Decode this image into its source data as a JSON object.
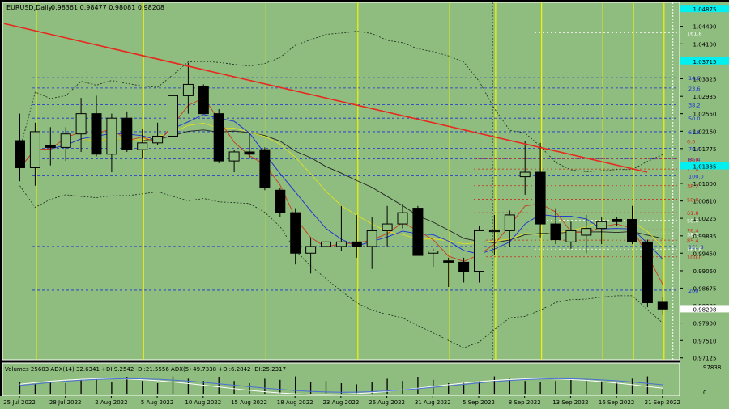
{
  "header": {
    "symbol_text": "EURUSD,Daily",
    "ohlc_text": "0.98361 0.98477 0.98081 0.98208"
  },
  "colors": {
    "background": "#8fbc7f",
    "frame": "#000000",
    "bull_candle": "#8fbc7f",
    "bear_candle": "#000000",
    "trendline": "#e8281e",
    "fib_blue": "#1a2fd6",
    "fib_red": "#cc2a1a",
    "vline_yellow": "#f4f400",
    "price_badge": "#00f0f0",
    "current_price_badge": "#ffffff"
  },
  "chart_data": {
    "type": "candlestick",
    "symbol": "EURUSD",
    "timeframe": "Daily",
    "ylim": [
      0.9712,
      1.0495
    ],
    "y_ticks": [
      "1.04875",
      "1.04490",
      "1.04100",
      "1.03715",
      "1.03325",
      "1.02935",
      "1.02550",
      "1.02160",
      "1.01775",
      "1.01385",
      "1.01000",
      "1.00610",
      "1.00225",
      "0.99835",
      "0.99450",
      "0.99060",
      "0.98675",
      "0.98285",
      "0.97900",
      "0.97510",
      "0.97125"
    ],
    "x_labels": [
      "25 Jul 2022",
      "28 Jul 2022",
      "2 Aug 2022",
      "5 Aug 2022",
      "10 Aug 2022",
      "15 Aug 2022",
      "18 Aug 2022",
      "23 Aug 2022",
      "26 Aug 2022",
      "31 Aug 2022",
      "5 Sep 2022",
      "8 Sep 2022",
      "13 Sep 2022",
      "16 Sep 2022",
      "21 Sep 2022"
    ],
    "candles": [
      {
        "o": 1.0195,
        "h": 1.0255,
        "l": 1.0105,
        "c": 1.0135
      },
      {
        "o": 1.0135,
        "h": 1.0235,
        "l": 1.0095,
        "c": 1.0215
      },
      {
        "o": 1.0185,
        "h": 1.0225,
        "l": 1.014,
        "c": 1.018
      },
      {
        "o": 1.018,
        "h": 1.0225,
        "l": 1.015,
        "c": 1.021
      },
      {
        "o": 1.021,
        "h": 1.029,
        "l": 1.017,
        "c": 1.0255
      },
      {
        "o": 1.0255,
        "h": 1.0295,
        "l": 1.016,
        "c": 1.0165
      },
      {
        "o": 1.0165,
        "h": 1.0255,
        "l": 1.0125,
        "c": 1.0245
      },
      {
        "o": 1.0245,
        "h": 1.026,
        "l": 1.017,
        "c": 1.0175
      },
      {
        "o": 1.0175,
        "h": 1.022,
        "l": 1.0155,
        "c": 1.019
      },
      {
        "o": 1.019,
        "h": 1.0235,
        "l": 1.0185,
        "c": 1.0205
      },
      {
        "o": 1.0205,
        "h": 1.0365,
        "l": 1.0205,
        "c": 1.0295
      },
      {
        "o": 1.0295,
        "h": 1.0368,
        "l": 1.0255,
        "c": 1.032
      },
      {
        "o": 1.0315,
        "h": 1.032,
        "l": 1.0255,
        "c": 1.0255
      },
      {
        "o": 1.0255,
        "h": 1.0265,
        "l": 1.0145,
        "c": 1.015
      },
      {
        "o": 1.015,
        "h": 1.0175,
        "l": 1.0125,
        "c": 1.017
      },
      {
        "o": 1.017,
        "h": 1.021,
        "l": 1.0155,
        "c": 1.0165
      },
      {
        "o": 1.0175,
        "h": 1.018,
        "l": 1.0085,
        "c": 1.009
      },
      {
        "o": 1.0085,
        "h": 1.009,
        "l": 1.0025,
        "c": 1.0035
      },
      {
        "o": 1.0035,
        "h": 1.0045,
        "l": 0.992,
        "c": 0.9945
      },
      {
        "o": 0.9945,
        "h": 0.998,
        "l": 0.99,
        "c": 0.996
      },
      {
        "o": 0.996,
        "h": 1.001,
        "l": 0.9945,
        "c": 0.997
      },
      {
        "o": 0.996,
        "h": 1.005,
        "l": 0.995,
        "c": 0.997
      },
      {
        "o": 0.997,
        "h": 1.003,
        "l": 0.9935,
        "c": 0.996
      },
      {
        "o": 0.996,
        "h": 1.0025,
        "l": 0.991,
        "c": 0.9995
      },
      {
        "o": 0.9995,
        "h": 1.005,
        "l": 0.996,
        "c": 1.001
      },
      {
        "o": 1.001,
        "h": 1.0055,
        "l": 1.0,
        "c": 1.0035
      },
      {
        "o": 1.0045,
        "h": 1.005,
        "l": 0.994,
        "c": 0.994
      },
      {
        "o": 0.9945,
        "h": 0.9955,
        "l": 0.9915,
        "c": 0.995
      },
      {
        "o": 0.9928,
        "h": 0.9935,
        "l": 0.987,
        "c": 0.9925
      },
      {
        "o": 0.9925,
        "h": 0.9935,
        "l": 0.988,
        "c": 0.9905
      },
      {
        "o": 0.9905,
        "h": 1.0005,
        "l": 0.988,
        "c": 0.9995
      },
      {
        "o": 0.9995,
        "h": 1.003,
        "l": 0.994,
        "c": 0.9995
      },
      {
        "o": 0.9995,
        "h": 1.004,
        "l": 0.996,
        "c": 1.003
      },
      {
        "o": 1.0115,
        "h": 1.0195,
        "l": 1.0075,
        "c": 1.0125
      },
      {
        "o": 1.0125,
        "h": 1.019,
        "l": 0.998,
        "c": 1.001
      },
      {
        "o": 1.001,
        "h": 1.0045,
        "l": 0.9965,
        "c": 0.9975
      },
      {
        "o": 0.997,
        "h": 1.0015,
        "l": 0.9955,
        "c": 0.9995
      },
      {
        "o": 0.9985,
        "h": 1.003,
        "l": 0.9945,
        "c": 1.0
      },
      {
        "o": 1.0,
        "h": 1.0025,
        "l": 0.9965,
        "c": 1.0015
      },
      {
        "o": 1.002,
        "h": 1.0025,
        "l": 1.0005,
        "c": 1.0015
      },
      {
        "o": 1.002,
        "h": 1.005,
        "l": 0.9965,
        "c": 0.997
      },
      {
        "o": 0.997,
        "h": 0.9975,
        "l": 0.9825,
        "c": 0.9835
      },
      {
        "o": 0.9836,
        "h": 0.9848,
        "l": 0.9808,
        "c": 0.9821
      }
    ],
    "trendline": {
      "from": {
        "bar": -1,
        "price": 1.0455
      },
      "to": {
        "bar": 41,
        "price": 1.0125
      }
    },
    "fib_levels_blue": [
      {
        "label": "0.0",
        "price": 1.0372
      },
      {
        "label": "14.6",
        "price": 1.0335
      },
      {
        "label": "23.6",
        "price": 1.0312
      },
      {
        "label": "38.2",
        "price": 1.0275
      },
      {
        "label": "50.0",
        "price": 1.0245
      },
      {
        "label": "61.8",
        "price": 1.0215
      },
      {
        "label": "76.4",
        "price": 1.0178
      },
      {
        "label": "85.4",
        "price": 1.0155
      },
      {
        "label": "100.0",
        "price": 1.0117
      },
      {
        "label": "161.8",
        "price": 0.996
      },
      {
        "label": "200",
        "price": 0.9863
      }
    ],
    "fib_levels_red": [
      {
        "label": "0.0",
        "price": 1.0194
      },
      {
        "label": "14.6",
        "price": 1.0155
      },
      {
        "label": "23.6",
        "price": 1.0132
      },
      {
        "label": "38.2",
        "price": 1.0095
      },
      {
        "label": "50.0",
        "price": 1.0065
      },
      {
        "label": "61.8",
        "price": 1.0035
      },
      {
        "label": "76.4",
        "price": 0.9997
      },
      {
        "label": "85.4",
        "price": 0.9974
      },
      {
        "label": "100.0",
        "price": 0.9937
      }
    ],
    "fib_labels_white": [
      {
        "label": "161.8",
        "price": 1.0435
      },
      {
        "label": "50.0",
        "price": 1.0018
      },
      {
        "label": "38.2",
        "price": 0.9988
      },
      {
        "label": "161.8",
        "price": 0.9954
      }
    ],
    "price_badges": [
      {
        "label": "1.04875",
        "price": 1.04875
      },
      {
        "label": "1.03715",
        "price": 1.03715
      },
      {
        "label": "1.01385",
        "price": 1.01385
      }
    ],
    "current_price": {
      "label": "0.98208",
      "price": 0.98208
    },
    "yellow_vline_bars": [
      1,
      8,
      16,
      22,
      28,
      31,
      34,
      38,
      40,
      42
    ],
    "black_vline_bars": [
      31
    ],
    "white_vline_bars": [
      43
    ]
  },
  "indicator": {
    "label_text": "Volumes 25603  ADX(14) 32.6341 +DI:9.2542 -DI:21.5556  ADX(5) 49.7338 +DI:6.2842 -DI:25.2317",
    "top_value": "97838",
    "bottom_value": "0",
    "volumes": [
      0.55,
      0.45,
      0.6,
      0.5,
      0.65,
      0.7,
      0.55,
      0.75,
      0.6,
      0.5,
      0.8,
      0.7,
      0.6,
      0.75,
      0.6,
      0.5,
      0.7,
      0.65,
      0.8,
      0.55,
      0.6,
      0.5,
      0.45,
      0.55,
      0.7,
      0.6,
      0.75,
      0.65,
      0.5,
      0.55,
      0.6,
      0.8,
      0.7,
      0.6,
      0.55,
      0.6,
      0.7,
      0.65,
      0.6,
      0.55,
      0.7,
      0.8,
      0.25
    ]
  }
}
